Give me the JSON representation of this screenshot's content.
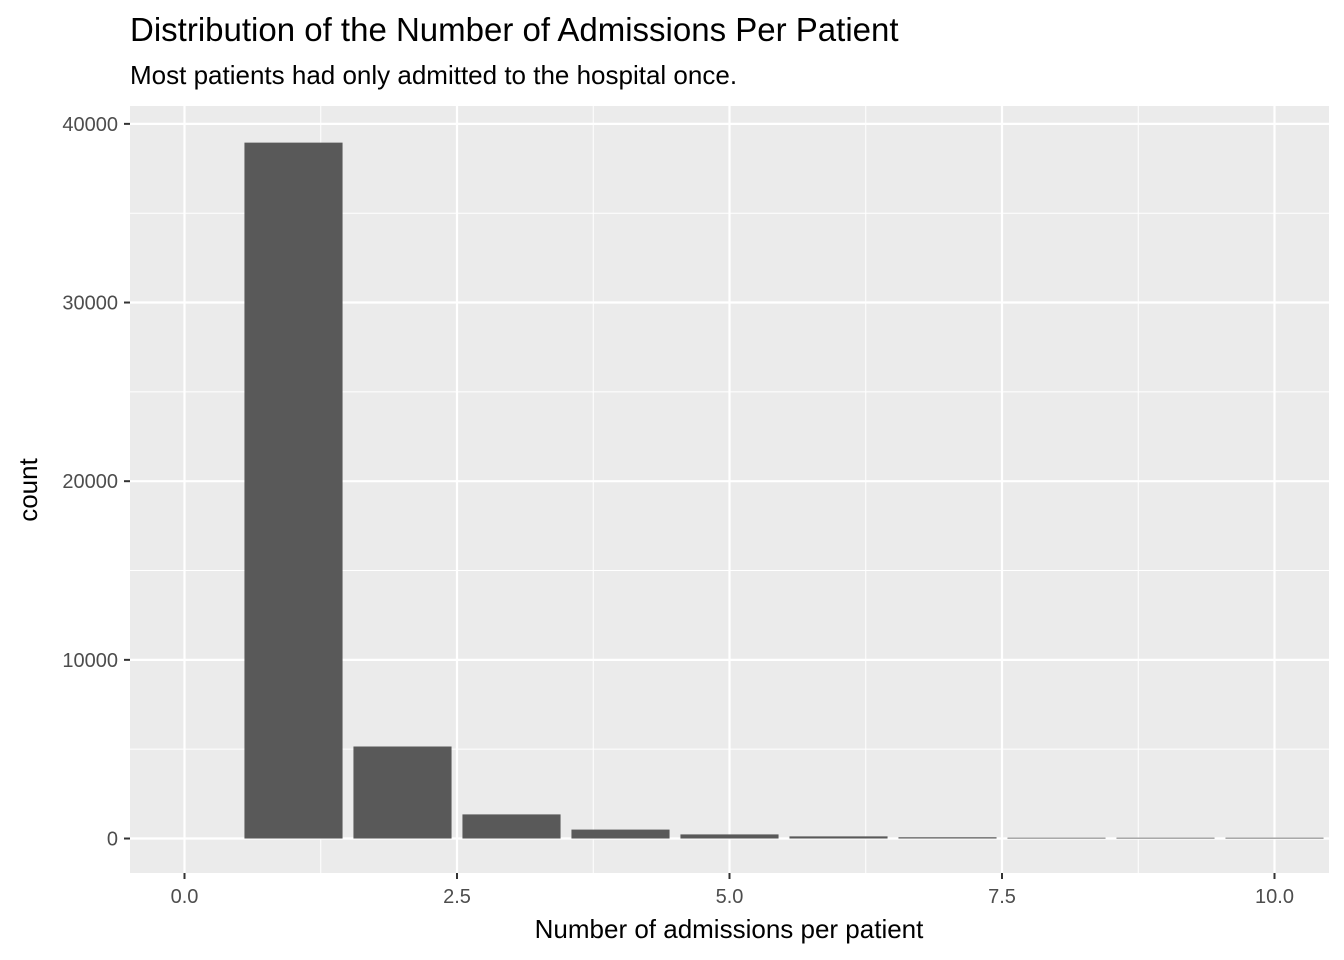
{
  "chart_data": {
    "type": "bar",
    "title": "Distribution of the Number of Admissions Per Patient",
    "subtitle": "Most patients had only admitted to the hospital once.",
    "xlabel": "Number of admissions per patient",
    "ylabel": "count",
    "x": [
      1,
      2,
      3,
      4,
      5,
      6,
      7,
      8,
      9,
      10
    ],
    "values": [
      38950,
      5150,
      1350,
      500,
      230,
      120,
      70,
      30,
      15,
      8
    ],
    "xlim": [
      -0.5,
      10.5
    ],
    "ylim": [
      -1930,
      41000
    ],
    "xticks": [
      0.0,
      2.5,
      5.0,
      7.5,
      10.0
    ],
    "xtick_labels": [
      "0.0",
      "2.5",
      "5.0",
      "7.5",
      "10.0"
    ],
    "yticks": [
      0,
      10000,
      20000,
      30000,
      40000
    ],
    "ytick_labels": [
      "0",
      "10000",
      "20000",
      "30000",
      "40000"
    ],
    "bar_width": 0.9,
    "grid": true,
    "colors": {
      "panel_background": "#EBEBEB",
      "grid": "#FFFFFF",
      "bar": "#595959",
      "tick": "#333333"
    }
  }
}
